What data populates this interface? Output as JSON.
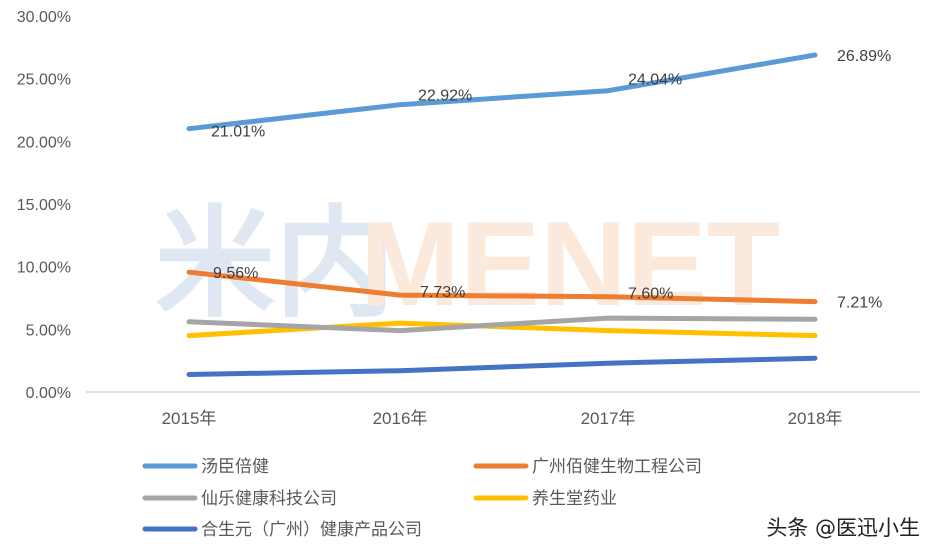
{
  "chart_data": {
    "type": "line",
    "title": "",
    "xlabel": "",
    "ylabel": "",
    "categories": [
      "2015年",
      "2016年",
      "2017年",
      "2018年"
    ],
    "ylim": [
      0,
      30
    ],
    "yticks": [
      "0.00%",
      "5.00%",
      "10.00%",
      "15.00%",
      "20.00%",
      "25.00%",
      "30.00%"
    ],
    "grid": false,
    "legend_position": "bottom",
    "series": [
      {
        "name": "汤臣倍健",
        "color": "#5b9bd5",
        "values": [
          21.01,
          22.92,
          24.04,
          26.89
        ],
        "labels": [
          "21.01%",
          "22.92%",
          "24.04%",
          "26.89%"
        ]
      },
      {
        "name": "广州佰健生物工程公司",
        "color": "#ed7d31",
        "values": [
          9.56,
          7.73,
          7.6,
          7.21
        ],
        "labels": [
          "9.56%",
          "7.73%",
          "7.60%",
          "7.21%"
        ]
      },
      {
        "name": "仙乐健康科技公司",
        "color": "#a5a5a5",
        "values": [
          5.6,
          4.9,
          5.9,
          5.8
        ],
        "labels": []
      },
      {
        "name": "养生堂药业",
        "color": "#ffc000",
        "values": [
          4.5,
          5.5,
          4.9,
          4.5
        ],
        "labels": []
      },
      {
        "name": "合生元（广州）健康产品公司",
        "color": "#4472c4",
        "values": [
          1.4,
          1.7,
          2.3,
          2.7
        ],
        "labels": []
      }
    ]
  },
  "watermark": {
    "cn": "米内",
    "en": "MENET"
  },
  "credit": "头条 @医迅小生"
}
